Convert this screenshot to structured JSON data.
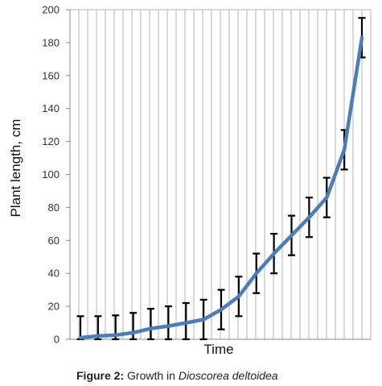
{
  "chart_data": {
    "type": "line",
    "xlabel": "Time",
    "ylabel": "Plant length, cm",
    "ylim": [
      0,
      200
    ],
    "yticks": [
      0,
      20,
      40,
      60,
      80,
      100,
      120,
      140,
      160,
      180,
      200
    ],
    "grid": "vertical",
    "line_color": "#4a7ebb",
    "errorbar_color": "#000000",
    "series": [
      {
        "points": [
          {
            "y": 1,
            "err": 13
          },
          {
            "y": 2,
            "err": 12
          },
          {
            "y": 2.5,
            "err": 12
          },
          {
            "y": 4,
            "err": 12
          },
          {
            "y": 6.5,
            "err": 12
          },
          {
            "y": 8,
            "err": 12
          },
          {
            "y": 10,
            "err": 12
          },
          {
            "y": 12,
            "err": 12
          },
          {
            "y": 18,
            "err": 12
          },
          {
            "y": 26,
            "err": 12
          },
          {
            "y": 40,
            "err": 12
          },
          {
            "y": 52,
            "err": 12
          },
          {
            "y": 63,
            "err": 12
          },
          {
            "y": 74,
            "err": 12
          },
          {
            "y": 86,
            "err": 12
          },
          {
            "y": 115,
            "err": 12
          },
          {
            "y": 183,
            "err": 12
          }
        ]
      }
    ]
  },
  "caption": {
    "prefix": "Figure 2:",
    "text": "Growth in",
    "species": "Dioscorea deltoidea"
  }
}
